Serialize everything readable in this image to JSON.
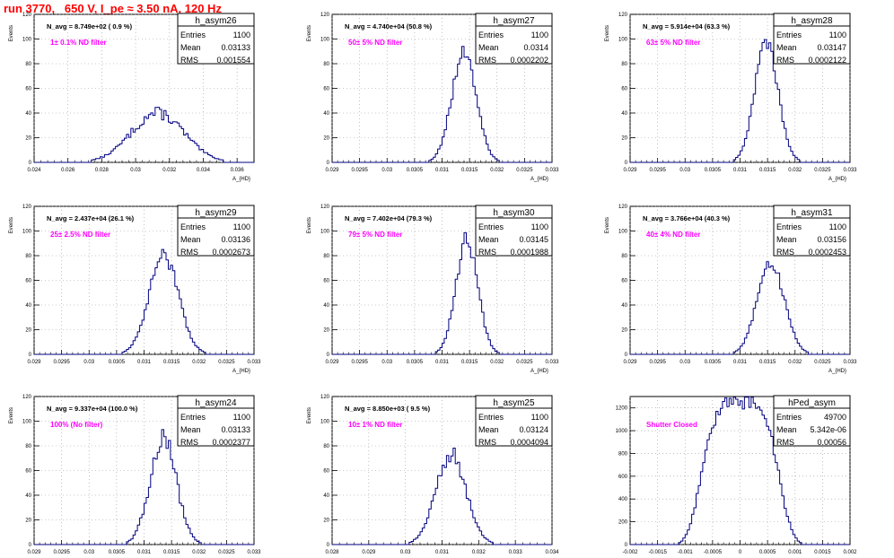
{
  "page_title": "run 3770,   650 V, I_pe ≈ 3.50 nA, 120 Hz",
  "colors": {
    "histogram": "#000080",
    "annotation": "#ff00ff",
    "title_text": "#ff0000",
    "grid": "#999999"
  },
  "chart_data": [
    {
      "type": "bar",
      "name": "h_asym26",
      "xlabel": "A_{HD}",
      "ylabel": "Events",
      "xlim": [
        0.024,
        0.037
      ],
      "xticks": [
        "0.024",
        "0.026",
        "0.028",
        "0.03",
        "0.032",
        "0.034",
        "0.036"
      ],
      "ylim": [
        0,
        120
      ],
      "yticks": [
        "0",
        "20",
        "40",
        "60",
        "80",
        "100",
        "120"
      ],
      "n_avg": "N_avg = 8.749e+02 ( 0.9 %)",
      "filter_label": "1± 0.1% ND filter",
      "stats": {
        "entries": "1100",
        "mean": "0.03133",
        "rms": "0.001554"
      },
      "peak": 40,
      "peak_x": 0.0313,
      "jagged": 0.25
    },
    {
      "type": "bar",
      "name": "h_asym27",
      "xlabel": "A_{HD}",
      "ylabel": "Events",
      "xlim": [
        0.029,
        0.033
      ],
      "xticks": [
        "0.029",
        "0.0295",
        "0.03",
        "0.0305",
        "0.031",
        "0.0315",
        "0.032",
        "0.0325",
        "0.033"
      ],
      "ylim": [
        0,
        120
      ],
      "yticks": [
        "0",
        "20",
        "40",
        "60",
        "80",
        "100",
        "120"
      ],
      "n_avg": "N_avg = 4.740e+04 (50.8 %)",
      "filter_label": "50± 5% ND filter",
      "stats": {
        "entries": "1100",
        "mean": "0.0314",
        "rms": "0.0002202"
      },
      "peak": 90,
      "peak_x": 0.0314,
      "jagged": 0.15
    },
    {
      "type": "bar",
      "name": "h_asym28",
      "xlabel": "A_{HD}",
      "ylabel": "Events",
      "xlim": [
        0.029,
        0.033
      ],
      "xticks": [
        "0.029",
        "0.0295",
        "0.03",
        "0.0305",
        "0.031",
        "0.0315",
        "0.032",
        "0.0325",
        "0.033"
      ],
      "ylim": [
        0,
        120
      ],
      "yticks": [
        "0",
        "20",
        "40",
        "60",
        "80",
        "100",
        "120"
      ],
      "n_avg": "N_avg = 5.914e+04 (63.3 %)",
      "filter_label": "63± 5% ND filter",
      "stats": {
        "entries": "1100",
        "mean": "0.03147",
        "rms": "0.0002122"
      },
      "peak": 97,
      "peak_x": 0.03148,
      "jagged": 0.15
    },
    {
      "type": "bar",
      "name": "h_asym29",
      "xlabel": "A_{HD}",
      "ylabel": "Events",
      "xlim": [
        0.029,
        0.033
      ],
      "xticks": [
        "0.029",
        "0.0295",
        "0.03",
        "0.0305",
        "0.031",
        "0.0315",
        "0.032",
        "0.0325",
        "0.033"
      ],
      "ylim": [
        0,
        120
      ],
      "yticks": [
        "0",
        "20",
        "40",
        "60",
        "80",
        "100",
        "120"
      ],
      "n_avg": "N_avg = 2.437e+04 (26.1 %)",
      "filter_label": "25± 2.5% ND filter",
      "stats": {
        "entries": "1100",
        "mean": "0.03136",
        "rms": "0.0002673"
      },
      "peak": 80,
      "peak_x": 0.03136,
      "jagged": 0.15
    },
    {
      "type": "bar",
      "name": "h_asym30",
      "xlabel": "A_{HD}",
      "ylabel": "Events",
      "xlim": [
        0.029,
        0.033
      ],
      "xticks": [
        "0.029",
        "0.0295",
        "0.03",
        "0.0305",
        "0.031",
        "0.0315",
        "0.032",
        "0.0325",
        "0.033"
      ],
      "ylim": [
        0,
        120
      ],
      "yticks": [
        "0",
        "20",
        "40",
        "60",
        "80",
        "100",
        "120"
      ],
      "n_avg": "N_avg = 7.402e+04 (79.3 %)",
      "filter_label": "79± 5% ND filter",
      "stats": {
        "entries": "1100",
        "mean": "0.03145",
        "rms": "0.0001988"
      },
      "peak": 93,
      "peak_x": 0.03145,
      "jagged": 0.15
    },
    {
      "type": "bar",
      "name": "h_asym31",
      "xlabel": "A_{HD}",
      "ylabel": "Events",
      "xlim": [
        0.029,
        0.033
      ],
      "xticks": [
        "0.029",
        "0.0295",
        "0.03",
        "0.0305",
        "0.031",
        "0.0315",
        "0.032",
        "0.0325",
        "0.033"
      ],
      "ylim": [
        0,
        120
      ],
      "yticks": [
        "0",
        "20",
        "40",
        "60",
        "80",
        "100",
        "120"
      ],
      "n_avg": "N_avg = 3.766e+04 (40.3 %)",
      "filter_label": "40± 4% ND filter",
      "stats": {
        "entries": "1100",
        "mean": "0.03156",
        "rms": "0.0002453"
      },
      "peak": 74,
      "peak_x": 0.03156,
      "jagged": 0.15
    },
    {
      "type": "bar",
      "name": "h_asym24",
      "xlabel": "A_{HD}",
      "ylabel": "Events",
      "xlim": [
        0.029,
        0.033
      ],
      "xticks": [
        "0.029",
        "0.0295",
        "0.03",
        "0.0305",
        "0.031",
        "0.0315",
        "0.032",
        "0.0325",
        "0.033"
      ],
      "ylim": [
        0,
        120
      ],
      "yticks": [
        "0",
        "20",
        "40",
        "60",
        "80",
        "100",
        "120"
      ],
      "n_avg": "N_avg = 9.337e+04 (100.0 %)",
      "filter_label": "100% (No filter)",
      "stats": {
        "entries": "1100",
        "mean": "0.03133",
        "rms": "0.0002377"
      },
      "peak": 87,
      "peak_x": 0.03135,
      "jagged": 0.2
    },
    {
      "type": "bar",
      "name": "h_asym25",
      "xlabel": "A_{HD}",
      "ylabel": "Events",
      "xlim": [
        0.028,
        0.034
      ],
      "xticks": [
        "0.028",
        "0.029",
        "0.03",
        "0.031",
        "0.032",
        "0.033",
        "0.034"
      ],
      "ylim": [
        0,
        120
      ],
      "yticks": [
        "0",
        "20",
        "40",
        "60",
        "80",
        "100",
        "120"
      ],
      "n_avg": "N_avg = 8.850e+03 ( 9.5 %)",
      "filter_label": "10± 1% ND filter",
      "stats": {
        "entries": "1100",
        "mean": "0.03124",
        "rms": "0.0004094"
      },
      "peak": 73,
      "peak_x": 0.03124,
      "jagged": 0.2
    },
    {
      "type": "bar",
      "name": "hPed_asym",
      "xlabel": "A_{HD}",
      "ylabel": "",
      "xlim": [
        -0.002,
        0.002
      ],
      "xticks": [
        "-0.002",
        "-0.0015",
        "-0.001",
        "-0.0005",
        "0",
        "0.0005",
        "0.001",
        "0.0015",
        "0.002"
      ],
      "ylim": [
        0,
        1300
      ],
      "yticks": [
        "0",
        "200",
        "400",
        "600",
        "800",
        "1000",
        "1200"
      ],
      "n_avg": "",
      "filter_label": "Shutter Closed",
      "stats": {
        "entries": "49700",
        "mean": "5.342e-06",
        "rms": "0.00056"
      },
      "peak": 1260,
      "peak_x": 0.0,
      "jagged": 0.12
    }
  ]
}
